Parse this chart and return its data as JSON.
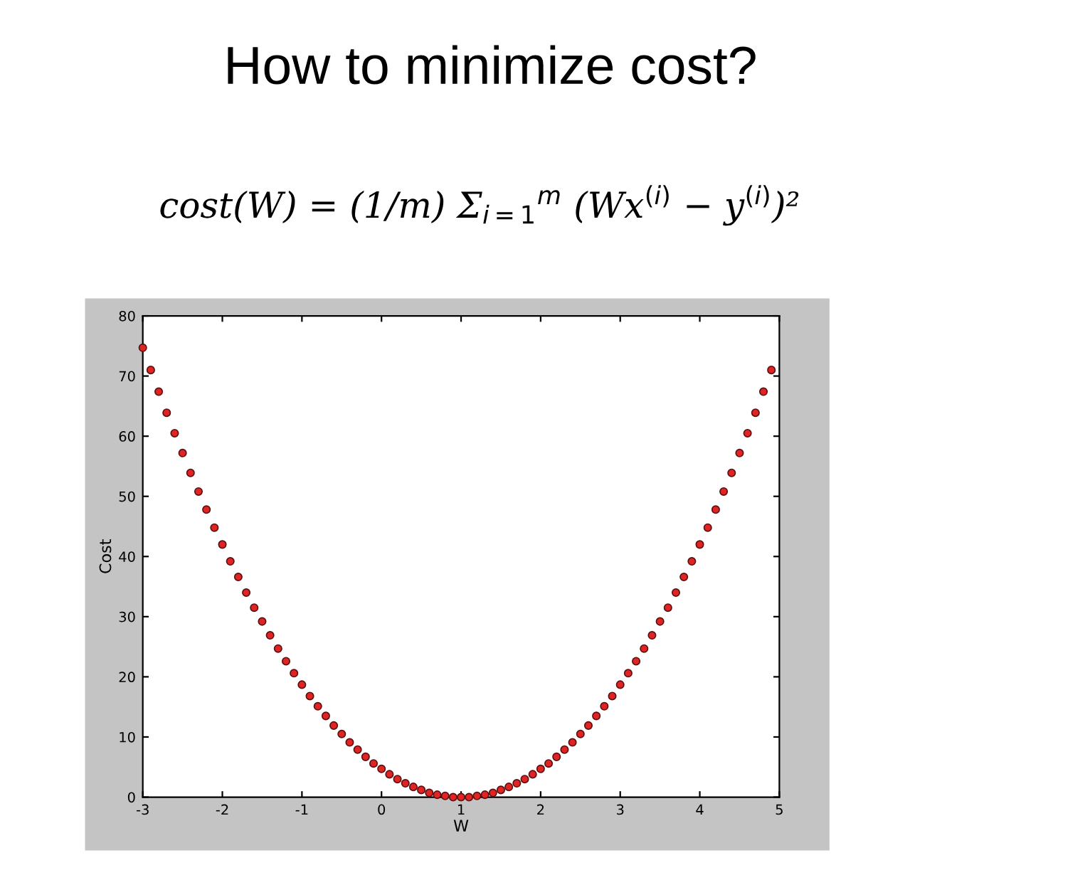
{
  "chart_data": {
    "type": "scatter",
    "title": "How to minimize cost?",
    "subtitle": "cost(W) = (1/m) Σ$_{i=1}$$^{m}$ (Wx$^{(i)}$ − y$^{(i)}$)²",
    "xlabel": "W",
    "ylabel": "Cost",
    "x": [
      -3.0,
      -2.9,
      -2.8,
      -2.7,
      -2.6,
      -2.5,
      -2.4,
      -2.3,
      -2.2,
      -2.1,
      -2.0,
      -1.9,
      -1.8,
      -1.7,
      -1.6,
      -1.5,
      -1.4,
      -1.3,
      -1.2,
      -1.1,
      -1.0,
      -0.9,
      -0.8,
      -0.7,
      -0.6,
      -0.5,
      -0.4,
      -0.3,
      -0.2,
      -0.1,
      0.0,
      0.1,
      0.2,
      0.3,
      0.4,
      0.5,
      0.6,
      0.7,
      0.8,
      0.9,
      1.0,
      1.1,
      1.2,
      1.3,
      1.4,
      1.5,
      1.6,
      1.7,
      1.8,
      1.9,
      2.0,
      2.1,
      2.2,
      2.3,
      2.4,
      2.5,
      2.6,
      2.7,
      2.8,
      2.9,
      3.0,
      3.1,
      3.2,
      3.3,
      3.4,
      3.5,
      3.6,
      3.7,
      3.8,
      3.9,
      4.0,
      4.1,
      4.2,
      4.3,
      4.4,
      4.5,
      4.6,
      4.7,
      4.8,
      4.9
    ],
    "series": [
      {
        "color": "#e02424",
        "values": [
          74.7,
          71.0,
          67.4,
          63.9,
          60.5,
          57.2,
          53.9,
          50.8,
          47.8,
          44.8,
          42.0,
          39.2,
          36.6,
          34.0,
          31.5,
          29.2,
          26.9,
          24.7,
          22.6,
          20.6,
          18.7,
          16.8,
          15.1,
          13.5,
          11.9,
          10.5,
          9.1,
          7.9,
          6.7,
          5.6,
          4.7,
          3.8,
          3.0,
          2.3,
          1.7,
          1.2,
          0.7,
          0.4,
          0.2,
          0.0,
          0.0,
          0.0,
          0.2,
          0.4,
          0.7,
          1.2,
          1.7,
          2.3,
          3.0,
          3.8,
          4.7,
          5.6,
          6.7,
          7.9,
          9.1,
          10.5,
          11.9,
          13.5,
          15.1,
          16.8,
          18.7,
          20.6,
          22.6,
          24.7,
          26.9,
          29.2,
          31.5,
          34.0,
          36.6,
          39.2,
          42.0,
          44.8,
          47.8,
          50.8,
          53.9,
          57.2,
          60.5,
          63.9,
          67.4,
          71.0
        ]
      }
    ],
    "xlim": [
      -3,
      5
    ],
    "xticks": [
      -3,
      -2,
      -1,
      0,
      1,
      2,
      3,
      4,
      5
    ],
    "ylim": [
      0,
      80
    ],
    "yticks": [
      0,
      10,
      20,
      30,
      40,
      50,
      60,
      70,
      80
    ],
    "marker": "circle"
  }
}
